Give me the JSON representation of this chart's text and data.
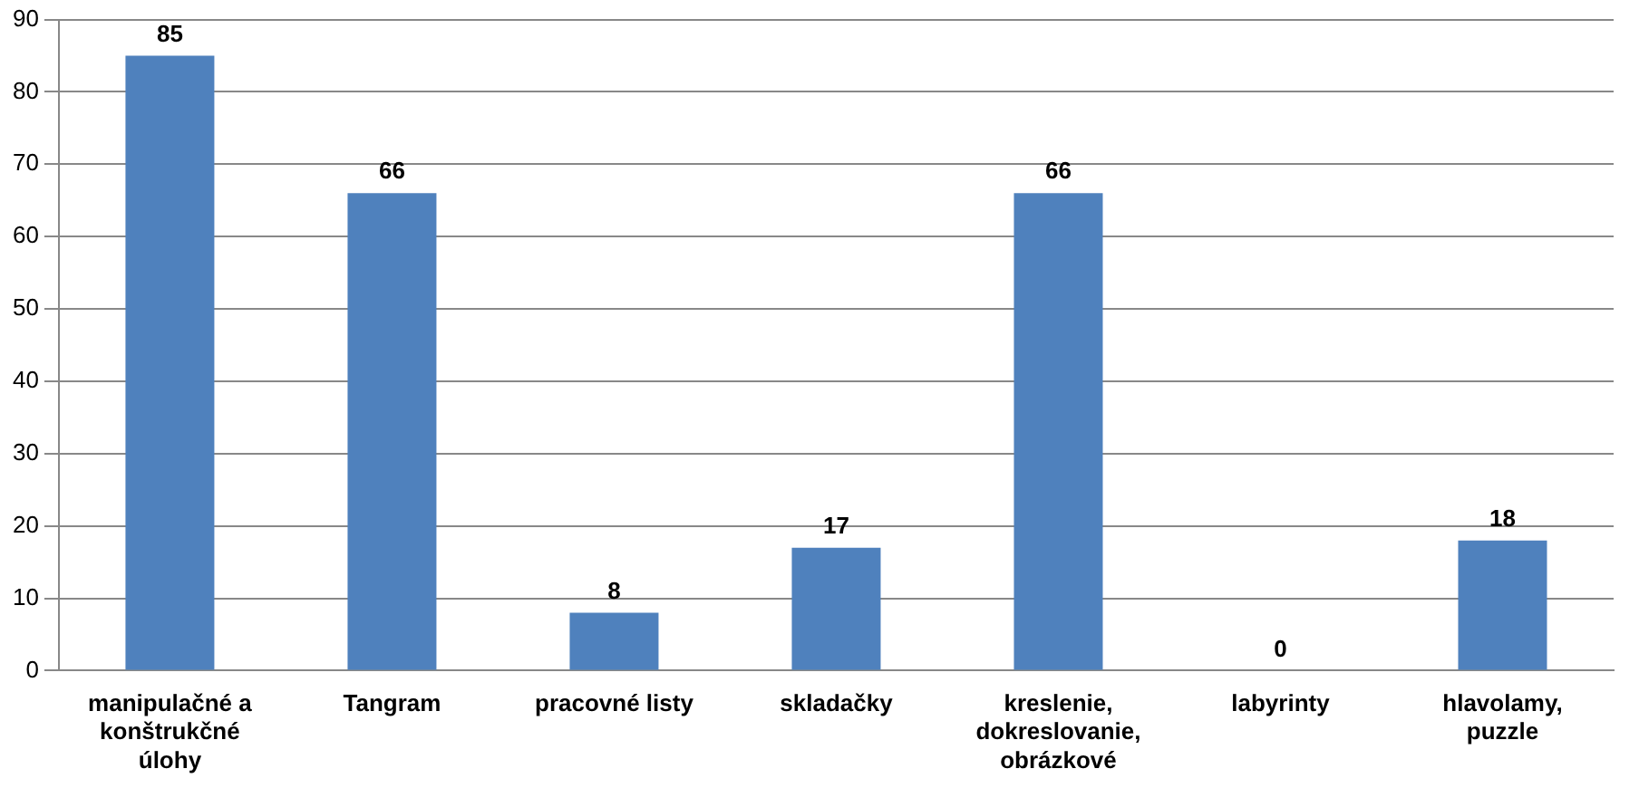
{
  "chart_data": {
    "type": "bar",
    "categories": [
      "manipulačné a konštrukčné úlohy",
      "Tangram",
      "pracovné listy",
      "skladačky",
      "kreslenie, dokreslovanie, obrázkové",
      "labyrinty",
      "hlavolamy, puzzle"
    ],
    "values": [
      85,
      66,
      8,
      17,
      66,
      0,
      18
    ],
    "color": "#4f81bd",
    "ylim": [
      0,
      90
    ],
    "yticks": [
      0,
      10,
      20,
      30,
      40,
      50,
      60,
      70,
      80,
      90
    ],
    "grid": "y",
    "data_labels": true
  }
}
